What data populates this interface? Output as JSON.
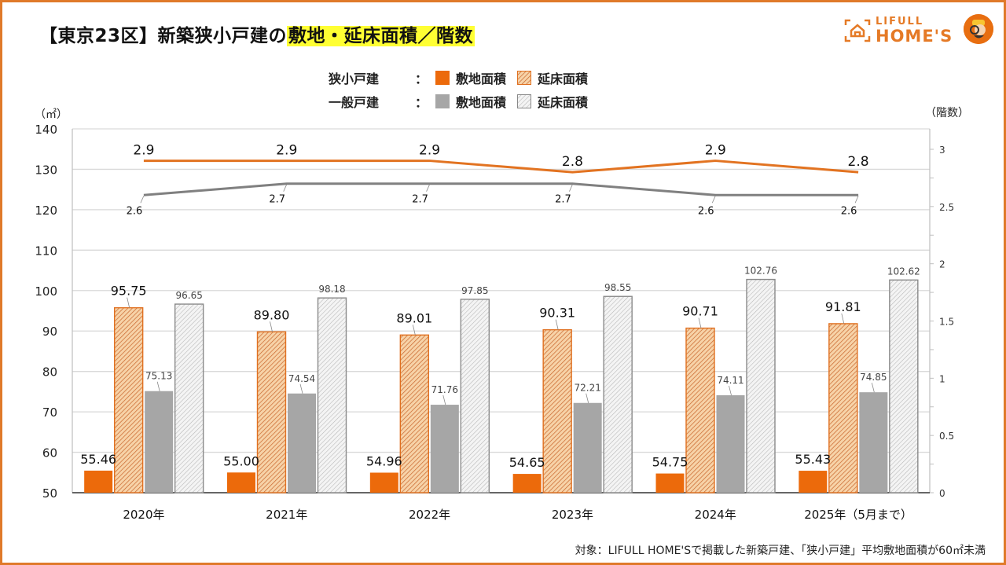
{
  "header": {
    "title_prefix": "【東京23区】新築狭小戸建の",
    "title_highlight": "敷地・延床面積／階数",
    "logo_line1": "LIFULL",
    "logo_line2": "HOME'S"
  },
  "legend": {
    "rows": [
      {
        "group": "狭小戸建",
        "colon": "：",
        "items": [
          {
            "label": "敷地面積",
            "style": "solid-orange"
          },
          {
            "label": "延床面積",
            "style": "hatch-orange"
          }
        ]
      },
      {
        "group": "一般戸建",
        "colon": "：",
        "items": [
          {
            "label": "敷地面積",
            "style": "solid-gray"
          },
          {
            "label": "延床面積",
            "style": "hatch-gray"
          }
        ]
      }
    ]
  },
  "units": {
    "left": "（㎡）",
    "right": "（階数）"
  },
  "footnote": "対象：LIFULL HOME'Sで掲載した新築戸建、「狭小戸建」平均敷地面積が60㎡未満",
  "colors": {
    "orange": "#ec6a0b",
    "orange_hatch_bg": "#f7d3a8",
    "orange_line": "#e27321",
    "gray": "#a6a6a6",
    "gray_line": "#808080",
    "gray_hatch_bg": "#f2f2f2",
    "frame": "#e07a2a",
    "highlight": "#ffff33"
  },
  "chart_data": {
    "type": "bar+line",
    "title": "【東京23区】新築狭小戸建の敷地・延床面積／階数",
    "categories": [
      "2020年",
      "2021年",
      "2022年",
      "2023年",
      "2024年",
      "2025年（5月まで）"
    ],
    "y_left": {
      "label": "（㎡）",
      "range": [
        50,
        140
      ],
      "ticks": [
        50,
        60,
        70,
        80,
        90,
        100,
        110,
        120,
        130,
        140
      ]
    },
    "y_right": {
      "label": "（階数）",
      "range": [
        0,
        3.2
      ],
      "ticks": [
        "0",
        "0.5",
        "1",
        "1.5",
        "2",
        "2.5",
        "3"
      ],
      "tick_values": [
        0,
        0.5,
        1,
        1.5,
        2,
        2.5,
        3
      ]
    },
    "grid": true,
    "bar_series": [
      {
        "name": "狭小戸建 敷地面積",
        "style": "solid-orange",
        "values": [
          55.46,
          55.0,
          54.96,
          54.65,
          54.75,
          55.43
        ],
        "labels": [
          "55.46",
          "55.00",
          "54.96",
          "54.65",
          "54.75",
          "55.43"
        ]
      },
      {
        "name": "狭小戸建 延床面積",
        "style": "hatch-orange",
        "values": [
          95.75,
          89.8,
          89.01,
          90.31,
          90.71,
          91.81
        ],
        "labels": [
          "95.75",
          "89.80",
          "89.01",
          "90.31",
          "90.71",
          "91.81"
        ]
      },
      {
        "name": "一般戸建 敷地面積",
        "style": "solid-gray",
        "values": [
          75.13,
          74.54,
          71.76,
          72.21,
          74.11,
          74.85
        ],
        "labels": [
          "75.13",
          "74.54",
          "71.76",
          "72.21",
          "74.11",
          "74.85"
        ]
      },
      {
        "name": "一般戸建 延床面積",
        "style": "hatch-gray",
        "values": [
          96.65,
          98.18,
          97.85,
          98.55,
          102.76,
          102.62
        ],
        "labels": [
          "96.65",
          "98.18",
          "97.85",
          "98.55",
          "102.76",
          "102.62"
        ]
      }
    ],
    "line_series": [
      {
        "name": "狭小戸建 階数",
        "axis": "right",
        "color": "orange",
        "values": [
          2.9,
          2.9,
          2.9,
          2.8,
          2.9,
          2.8
        ],
        "labels": [
          "2.9",
          "2.9",
          "2.9",
          "2.8",
          "2.9",
          "2.8"
        ],
        "label_position": "above"
      },
      {
        "name": "一般戸建 階数",
        "axis": "right",
        "color": "gray",
        "values": [
          2.6,
          2.7,
          2.7,
          2.7,
          2.6,
          2.6
        ],
        "labels": [
          "2.6",
          "2.7",
          "2.7",
          "2.7",
          "2.6",
          "2.6"
        ],
        "label_position": "below"
      }
    ]
  }
}
